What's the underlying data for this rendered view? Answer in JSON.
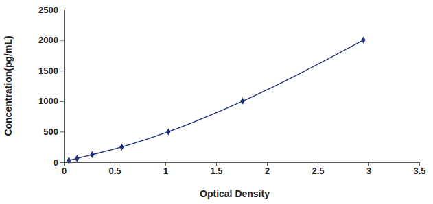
{
  "chart_data": {
    "type": "line",
    "xlabel": "Optical Density",
    "ylabel": "Concentration(pg/mL)",
    "x": [
      0.05,
      0.13,
      0.28,
      0.57,
      1.03,
      1.76,
      2.95
    ],
    "values": [
      31.25,
      62.5,
      125,
      250,
      500,
      1000,
      2000
    ],
    "color": "#1f2f7a",
    "marker": "diamond",
    "line_style": "solid",
    "grid": false,
    "xlim": [
      0,
      3.5
    ],
    "xticks": [
      0,
      0.5,
      1,
      1.5,
      2,
      2.5,
      3,
      3.5
    ],
    "ylim": [
      0,
      2500
    ],
    "yticks": [
      0,
      500,
      1000,
      1500,
      2000,
      2500
    ]
  }
}
